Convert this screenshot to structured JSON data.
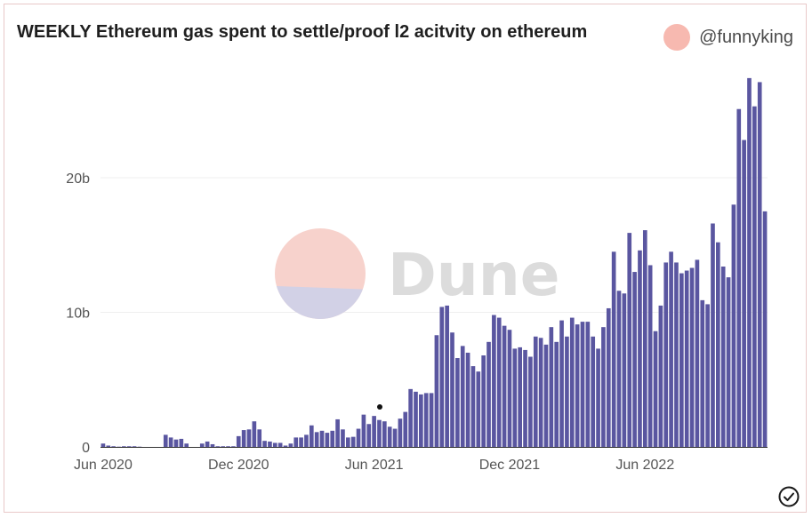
{
  "header": {
    "title": "WEEKLY Ethereum gas spent to settle/proof l2 acitvity on ethereum",
    "author": "@funnyking"
  },
  "watermark": {
    "text": "Dune"
  },
  "colors": {
    "bar": "#5a56a0",
    "grid": "#efefef",
    "avatar": "#f7b9b0"
  },
  "icons": {
    "status": "check-circle-icon"
  },
  "chart_data": {
    "type": "bar",
    "title": "WEEKLY Ethereum gas spent to settle/proof l2 acitvity on ethereum",
    "xlabel": "",
    "ylabel": "",
    "ylim": [
      0,
      28
    ],
    "y_unit": "b",
    "grid": true,
    "y_ticks": [
      {
        "value": 0,
        "label": "0"
      },
      {
        "value": 10,
        "label": "10b"
      },
      {
        "value": 20,
        "label": "20b"
      }
    ],
    "x_ticks": [
      {
        "index": 0,
        "label": "Jun 2020"
      },
      {
        "index": 26,
        "label": "Dec 2020"
      },
      {
        "index": 52,
        "label": "Jun 2021"
      },
      {
        "index": 78,
        "label": "Dec 2021"
      },
      {
        "index": 104,
        "label": "Jun 2022"
      }
    ],
    "x_start_label": "Jun 2020",
    "values": [
      0.25,
      0.1,
      0.05,
      0.02,
      0.05,
      0.05,
      0.05,
      0.02,
      0,
      0,
      0,
      0,
      0.9,
      0.7,
      0.55,
      0.6,
      0.25,
      0,
      0,
      0.25,
      0.4,
      0.2,
      0.05,
      0.05,
      0.05,
      0.05,
      0.8,
      1.25,
      1.3,
      1.9,
      1.3,
      0.45,
      0.4,
      0.3,
      0.3,
      0.1,
      0.25,
      0.7,
      0.7,
      0.9,
      1.6,
      1.1,
      1.2,
      1.05,
      1.2,
      2.05,
      1.3,
      0.7,
      0.75,
      1.35,
      2.4,
      1.7,
      2.3,
      2.0,
      1.9,
      1.5,
      1.35,
      2.1,
      2.6,
      4.3,
      4.1,
      3.9,
      4.0,
      4.0,
      8.3,
      10.4,
      10.5,
      8.5,
      6.6,
      7.5,
      7.0,
      6.0,
      5.6,
      6.8,
      7.8,
      9.8,
      9.6,
      9.0,
      8.7,
      7.3,
      7.4,
      7.2,
      6.7,
      8.2,
      8.1,
      7.6,
      8.9,
      7.8,
      9.4,
      8.2,
      9.6,
      9.1,
      9.3,
      9.3,
      8.2,
      7.3,
      8.9,
      10.3,
      14.5,
      11.6,
      11.4,
      15.9,
      13.0,
      14.6,
      16.1,
      13.5,
      8.6,
      10.5,
      13.7,
      14.5,
      13.7,
      12.9,
      13.1,
      13.3,
      13.9,
      10.9,
      10.6,
      16.6,
      15.2,
      13.4,
      12.6,
      18.0,
      25.1,
      22.8,
      27.4,
      25.3,
      27.1,
      17.5
    ]
  }
}
